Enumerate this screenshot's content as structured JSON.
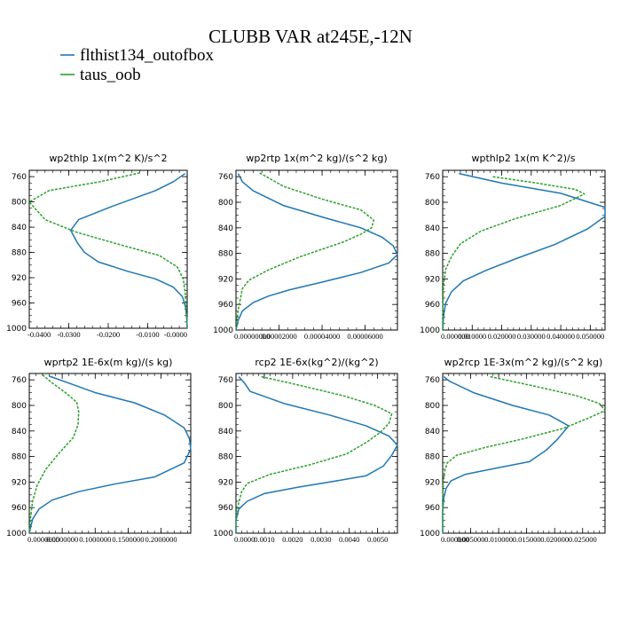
{
  "figure": {
    "title": "CLUBB VAR at245E,-12N",
    "legend": [
      {
        "label": "flthist134_outofbox",
        "color": "#1f77b4"
      },
      {
        "label": "taus_oob",
        "color": "#2ca02c"
      }
    ]
  },
  "chart_data": [
    {
      "type": "line",
      "title": "wp2thlp  1x(m^2 K)/s^2",
      "xlim": [
        -0.04,
        0.0
      ],
      "ylim": [
        1000,
        750
      ],
      "y_ticks": [
        "760",
        "800",
        "840",
        "880",
        "920",
        "960",
        "1000"
      ],
      "x_ticks": [
        {
          "v": -0.04,
          "t": "-0.0400"
        },
        {
          "v": -0.03,
          "t": "-0.0300"
        },
        {
          "v": -0.02,
          "t": "-0.0200"
        },
        {
          "v": -0.01,
          "t": "-0.0100"
        },
        {
          "v": 0.0,
          "t": "-0.0000"
        }
      ],
      "series": [
        {
          "name": "flthist134_outofbox",
          "color": "#1f77b4",
          "points": [
            [
              -0.0005,
              755
            ],
            [
              -0.0035,
              768
            ],
            [
              -0.008,
              782
            ],
            [
              -0.019,
              807
            ],
            [
              -0.0275,
              828
            ],
            [
              -0.0295,
              845
            ],
            [
              -0.0278,
              865
            ],
            [
              -0.026,
              880
            ],
            [
              -0.0225,
              895
            ],
            [
              -0.015,
              910
            ],
            [
              -0.008,
              922
            ],
            [
              -0.0035,
              935
            ],
            [
              -0.0012,
              950
            ],
            [
              -0.0004,
              967
            ],
            [
              -0.0001,
              985
            ],
            [
              0.0,
              1000
            ]
          ]
        },
        {
          "name": "taus_oob",
          "color": "#2ca02c",
          "points": [
            [
              -0.012,
              754
            ],
            [
              -0.022,
              768
            ],
            [
              -0.035,
              782
            ],
            [
              -0.04,
              800
            ],
            [
              -0.036,
              828
            ],
            [
              -0.028,
              848
            ],
            [
              -0.018,
              866
            ],
            [
              -0.007,
              885
            ],
            [
              -0.0025,
              903
            ],
            [
              -0.001,
              922
            ],
            [
              -0.0005,
              945
            ],
            [
              -0.0003,
              965
            ],
            [
              -0.0001,
              985
            ],
            [
              0.0,
              1000
            ]
          ]
        }
      ]
    },
    {
      "type": "line",
      "title": "wp2rtp  1x(m^2 kg)/(s^2 kg)",
      "xlim": [
        0.0,
        7.5e-05
      ],
      "ylim": [
        1000,
        750
      ],
      "y_ticks": [
        "760",
        "800",
        "840",
        "880",
        "920",
        "960",
        "1000"
      ],
      "x_ticks": [
        {
          "v": 0.0,
          "t": "0.00000000"
        },
        {
          "v": 2e-05,
          "t": "0.00002000"
        },
        {
          "v": 4e-05,
          "t": "0.00004000"
        },
        {
          "v": 6e-05,
          "t": "0.00006000"
        }
      ],
      "series": [
        {
          "name": "flthist134_outofbox",
          "color": "#1f77b4",
          "points": [
            [
              1e-06,
              755
            ],
            [
              3e-06,
              768
            ],
            [
              8e-06,
              782
            ],
            [
              2.2e-05,
              805
            ],
            [
              4.2e-05,
              825
            ],
            [
              5.8e-05,
              840
            ],
            [
              6.8e-05,
              855
            ],
            [
              7.3e-05,
              868
            ],
            [
              7.5e-05,
              882
            ],
            [
              7.1e-05,
              895
            ],
            [
              5.8e-05,
              910
            ],
            [
              4e-05,
              925
            ],
            [
              2.5e-05,
              937
            ],
            [
              1.5e-05,
              947
            ],
            [
              8e-06,
              957
            ],
            [
              3e-06,
              970
            ],
            [
              1e-06,
              985
            ],
            [
              0.0,
              1000
            ]
          ]
        },
        {
          "name": "taus_oob",
          "color": "#2ca02c",
          "points": [
            [
              1.1e-05,
              754
            ],
            [
              2.2e-05,
              775
            ],
            [
              4e-05,
              795
            ],
            [
              5.8e-05,
              812
            ],
            [
              6.4e-05,
              828
            ],
            [
              6.3e-05,
              840
            ],
            [
              5.8e-05,
              850
            ],
            [
              5e-05,
              862
            ],
            [
              3e-05,
              885
            ],
            [
              1.5e-05,
              906
            ],
            [
              6e-06,
              922
            ],
            [
              3e-06,
              935
            ],
            [
              2e-06,
              952
            ],
            [
              1e-06,
              968
            ],
            [
              5e-07,
              985
            ],
            [
              0.0,
              1000
            ]
          ]
        }
      ]
    },
    {
      "type": "line",
      "title": "wpthlp2  1x(m K^2)/s",
      "xlim": [
        0.0,
        0.055
      ],
      "ylim": [
        1000,
        750
      ],
      "y_ticks": [
        "760",
        "800",
        "840",
        "880",
        "920",
        "960",
        "1000"
      ],
      "x_ticks": [
        {
          "v": 0.0,
          "t": "0.000000"
        },
        {
          "v": 0.01,
          "t": "0.010000"
        },
        {
          "v": 0.02,
          "t": "0.020000"
        },
        {
          "v": 0.03,
          "t": "0.030000"
        },
        {
          "v": 0.04,
          "t": "0.040000"
        },
        {
          "v": 0.05,
          "t": "0.050000"
        }
      ],
      "series": [
        {
          "name": "flthist134_outofbox",
          "color": "#1f77b4",
          "points": [
            [
              0.0055,
              755
            ],
            [
              0.02,
              770
            ],
            [
              0.04,
              786
            ],
            [
              0.055,
              808
            ],
            [
              0.055,
              822
            ],
            [
              0.049,
              842
            ],
            [
              0.038,
              866
            ],
            [
              0.025,
              888
            ],
            [
              0.015,
              906
            ],
            [
              0.007,
              923
            ],
            [
              0.003,
              940
            ],
            [
              0.001,
              958
            ],
            [
              0.0003,
              978
            ],
            [
              0.0,
              1000
            ]
          ]
        },
        {
          "name": "taus_oob",
          "color": "#2ca02c",
          "points": [
            [
              0.017,
              760
            ],
            [
              0.032,
              770
            ],
            [
              0.045,
              780
            ],
            [
              0.048,
              787
            ],
            [
              0.04,
              805
            ],
            [
              0.025,
              825
            ],
            [
              0.013,
              845
            ],
            [
              0.006,
              865
            ],
            [
              0.003,
              885
            ],
            [
              0.001,
              905
            ],
            [
              0.0003,
              930
            ],
            [
              0.0001,
              960
            ],
            [
              0.0,
              1000
            ]
          ]
        }
      ]
    },
    {
      "type": "line",
      "title": "wprtp2  1E-6x(m kg)/(s kg)",
      "xlim": [
        0.0,
        0.245
      ],
      "ylim": [
        1000,
        750
      ],
      "y_ticks": [
        "760",
        "800",
        "840",
        "880",
        "920",
        "960",
        "1000"
      ],
      "x_ticks": [
        {
          "v": 0.0,
          "t": "0.0000000"
        },
        {
          "v": 0.05,
          "t": "0.0500000"
        },
        {
          "v": 0.1,
          "t": "0.1000000"
        },
        {
          "v": 0.15,
          "t": "0.1500000"
        },
        {
          "v": 0.2,
          "t": "0.2000000"
        }
      ],
      "series": [
        {
          "name": "flthist134_outofbox",
          "color": "#1f77b4",
          "points": [
            [
              0.03,
              754
            ],
            [
              0.06,
              765
            ],
            [
              0.1,
              780
            ],
            [
              0.16,
              796
            ],
            [
              0.205,
              815
            ],
            [
              0.235,
              835
            ],
            [
              0.243,
              852
            ],
            [
              0.245,
              868
            ],
            [
              0.235,
              890
            ],
            [
              0.19,
              912
            ],
            [
              0.13,
              923
            ],
            [
              0.075,
              935
            ],
            [
              0.035,
              948
            ],
            [
              0.015,
              962
            ],
            [
              0.005,
              978
            ],
            [
              0.0,
              1000
            ]
          ]
        },
        {
          "name": "taus_oob",
          "color": "#2ca02c",
          "points": [
            [
              0.02,
              752
            ],
            [
              0.035,
              765
            ],
            [
              0.055,
              780
            ],
            [
              0.072,
              795
            ],
            [
              0.075,
              810
            ],
            [
              0.074,
              830
            ],
            [
              0.067,
              850
            ],
            [
              0.045,
              875
            ],
            [
              0.025,
              900
            ],
            [
              0.012,
              925
            ],
            [
              0.005,
              950
            ],
            [
              0.002,
              975
            ],
            [
              0.0,
              1000
            ]
          ]
        }
      ]
    },
    {
      "type": "line",
      "title": "rcp2  1E-6x(kg^2)/(kg^2)",
      "xlim": [
        0.0,
        0.0057
      ],
      "ylim": [
        1000,
        750
      ],
      "y_ticks": [
        "760",
        "800",
        "840",
        "880",
        "920",
        "960",
        "1000"
      ],
      "x_ticks": [
        {
          "v": 0.0,
          "t": "0.0000"
        },
        {
          "v": 0.001,
          "t": "0.0010"
        },
        {
          "v": 0.002,
          "t": "0.0020"
        },
        {
          "v": 0.003,
          "t": "0.0030"
        },
        {
          "v": 0.004,
          "t": "0.0040"
        },
        {
          "v": 0.005,
          "t": "0.0050"
        }
      ],
      "series": [
        {
          "name": "flthist134_outofbox",
          "color": "#1f77b4",
          "points": [
            [
              0.0001,
              755
            ],
            [
              0.0003,
              765
            ],
            [
              0.0005,
              778
            ],
            [
              0.0017,
              797
            ],
            [
              0.0033,
              815
            ],
            [
              0.0046,
              832
            ],
            [
              0.0054,
              848
            ],
            [
              0.0057,
              862
            ],
            [
              0.0055,
              878
            ],
            [
              0.0052,
              895
            ],
            [
              0.0046,
              910
            ],
            [
              0.0033,
              920
            ],
            [
              0.0022,
              928
            ],
            [
              0.001,
              938
            ],
            [
              0.0004,
              950
            ],
            [
              0.0001,
              962
            ],
            [
              0.0,
              980
            ],
            [
              0.0,
              1000
            ]
          ]
        },
        {
          "name": "taus_oob",
          "color": "#2ca02c",
          "points": [
            [
              0.0009,
              755
            ],
            [
              0.0022,
              768
            ],
            [
              0.0038,
              785
            ],
            [
              0.0049,
              800
            ],
            [
              0.0055,
              813
            ],
            [
              0.0054,
              828
            ],
            [
              0.0051,
              842
            ],
            [
              0.0046,
              858
            ],
            [
              0.0039,
              876
            ],
            [
              0.0026,
              893
            ],
            [
              0.0012,
              908
            ],
            [
              0.0004,
              922
            ],
            [
              0.0002,
              935
            ],
            [
              0.0001,
              952
            ],
            [
              0.0,
              970
            ],
            [
              0.0,
              1000
            ]
          ]
        }
      ]
    },
    {
      "type": "line",
      "title": "wp2rcp  1E-3x(m^2 kg)/(s^2 kg)",
      "xlim": [
        0.0,
        0.029
      ],
      "ylim": [
        1000,
        750
      ],
      "y_ticks": [
        "760",
        "800",
        "840",
        "880",
        "920",
        "960",
        "1000"
      ],
      "x_ticks": [
        {
          "v": 0.0,
          "t": "0.000000"
        },
        {
          "v": 0.005,
          "t": "0.005000"
        },
        {
          "v": 0.01,
          "t": "0.010000"
        },
        {
          "v": 0.015,
          "t": "0.015000"
        },
        {
          "v": 0.02,
          "t": "0.020000"
        },
        {
          "v": 0.025,
          "t": "0.025000"
        }
      ],
      "series": [
        {
          "name": "flthist134_outofbox",
          "color": "#1f77b4",
          "points": [
            [
              0.0002,
              755
            ],
            [
              0.0012,
              762
            ],
            [
              0.0055,
              780
            ],
            [
              0.0125,
              800
            ],
            [
              0.019,
              815
            ],
            [
              0.0225,
              832
            ],
            [
              0.0205,
              853
            ],
            [
              0.0185,
              870
            ],
            [
              0.0155,
              888
            ],
            [
              0.0085,
              900
            ],
            [
              0.004,
              908
            ],
            [
              0.0015,
              918
            ],
            [
              0.0006,
              930
            ],
            [
              0.0002,
              945
            ],
            [
              0.0,
              965
            ],
            [
              0.0,
              1000
            ]
          ]
        },
        {
          "name": "taus_oob",
          "color": "#2ca02c",
          "points": [
            [
              0.0085,
              755
            ],
            [
              0.0165,
              770
            ],
            [
              0.024,
              785
            ],
            [
              0.028,
              797
            ],
            [
              0.029,
              808
            ],
            [
              0.026,
              820
            ],
            [
              0.0215,
              836
            ],
            [
              0.0145,
              852
            ],
            [
              0.0075,
              866
            ],
            [
              0.0025,
              878
            ],
            [
              0.0008,
              890
            ],
            [
              0.0003,
              905
            ],
            [
              0.0001,
              925
            ],
            [
              0.0,
              950
            ],
            [
              0.0,
              1000
            ]
          ]
        }
      ]
    }
  ]
}
